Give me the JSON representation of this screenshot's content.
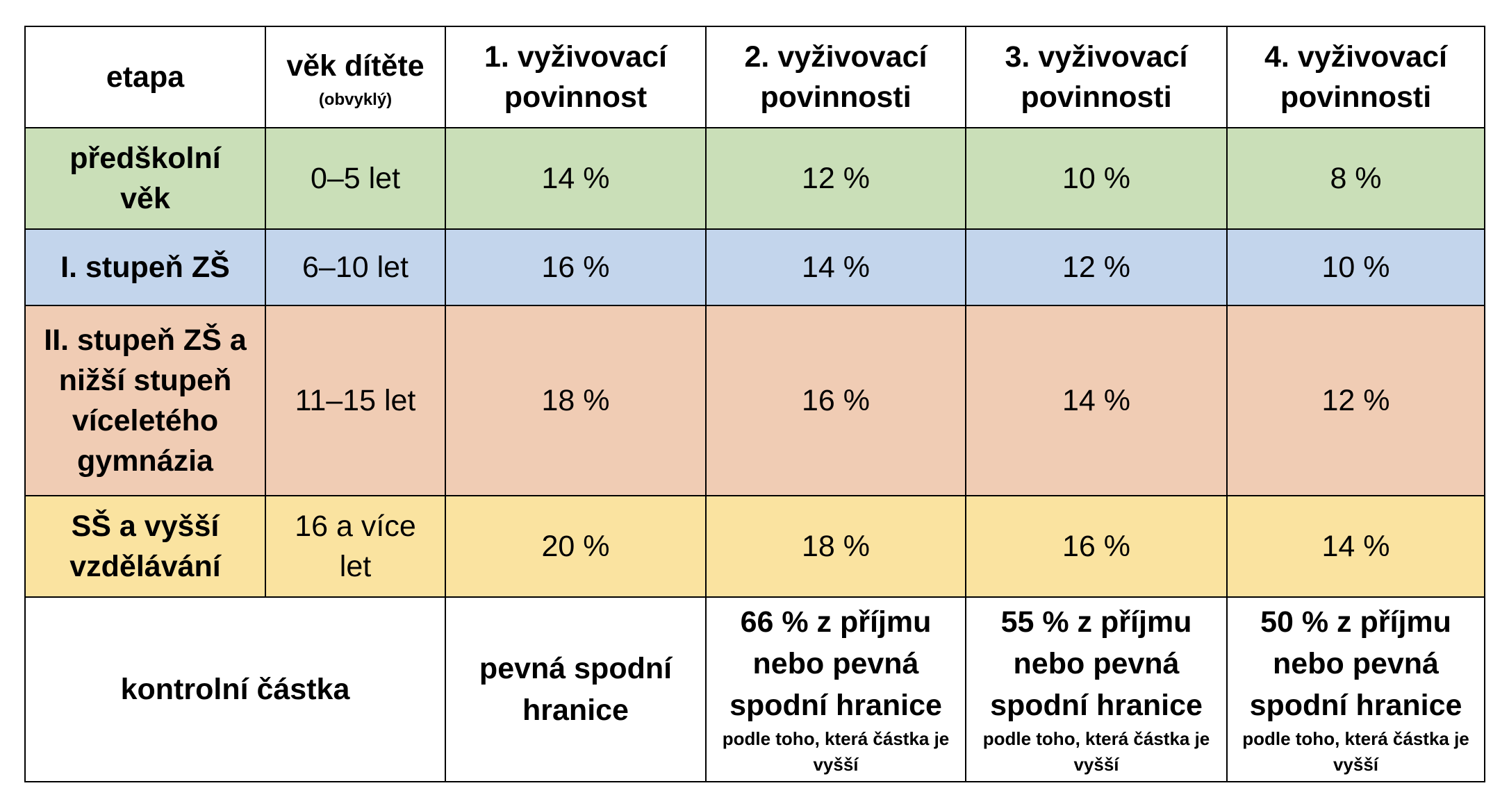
{
  "header": {
    "stage": "etapa",
    "age": "věk dítěte",
    "age_note": "(obvyklý)",
    "duty1": "1. vyživovací povinnost",
    "duty2": "2. vyživovací povinnosti",
    "duty3": "3. vyživovací povinnosti",
    "duty4": "4. vyživovací povinnosti"
  },
  "rows": [
    {
      "stage": "předškolní věk",
      "age": "0–5 let",
      "d1": "14 %",
      "d2": "12 %",
      "d3": "10 %",
      "d4": "8 %"
    },
    {
      "stage": "I. stupeň ZŠ",
      "age": "6–10 let",
      "d1": "16 %",
      "d2": "14 %",
      "d3": "12 %",
      "d4": "10 %"
    },
    {
      "stage": "II. stupeň ZŠ a nižší stupeň víceletého gymnázia",
      "age": "11–15 let",
      "d1": "18 %",
      "d2": "16 %",
      "d3": "14 %",
      "d4": "12 %"
    },
    {
      "stage": "SŠ a vyšší vzdělávání",
      "age": "16 a více let",
      "d1": "20 %",
      "d2": "18 %",
      "d3": "16 %",
      "d4": "14 %"
    }
  ],
  "control": {
    "label": "kontrolní částka",
    "d1": "pevná spodní hranice",
    "d2": "66 % z příjmu nebo pevná spodní hranice",
    "d2_note": "podle toho, která částka je vyšší",
    "d3": "55 % z příjmu nebo pevná spodní hranice",
    "d3_note": "podle toho, která částka je vyšší",
    "d4": "50 % z příjmu nebo pevná spodní hranice",
    "d4_note": "podle toho, která částka je vyšší"
  },
  "colors": {
    "preschool": "#cadfb8",
    "primary": "#c3d5ec",
    "lower_secondary": "#f0ccb4",
    "secondary": "#fae3a0"
  }
}
